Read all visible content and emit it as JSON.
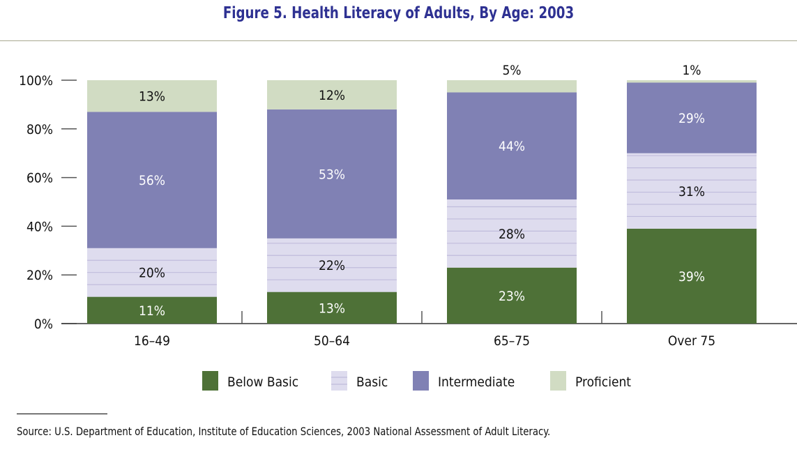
{
  "chart_data": {
    "type": "bar",
    "stacked": true,
    "title": "Figure 5. Health Literacy of Adults, By Age: 2003",
    "categories": [
      "16–49",
      "50–64",
      "65–75",
      "Over 75"
    ],
    "ylim": [
      0,
      100
    ],
    "yticks": [
      "0%",
      "20%",
      "40%",
      "60%",
      "80%",
      "100%"
    ],
    "legend_placement": "bottom",
    "series": [
      {
        "name": "Below Basic",
        "values": [
          11,
          13,
          23,
          39
        ],
        "color": "#4e7137"
      },
      {
        "name": "Basic",
        "values": [
          20,
          22,
          28,
          31
        ],
        "color": "#dedcee"
      },
      {
        "name": "Intermediate",
        "values": [
          56,
          53,
          44,
          29
        ],
        "color": "#8081b4"
      },
      {
        "name": "Proficient",
        "values": [
          13,
          12,
          5,
          1
        ],
        "color": "#d1dcc3"
      }
    ]
  },
  "source": "Source: U.S. Department of Education, Institute of Education Sciences, 2003 National Assessment of Adult Literacy."
}
